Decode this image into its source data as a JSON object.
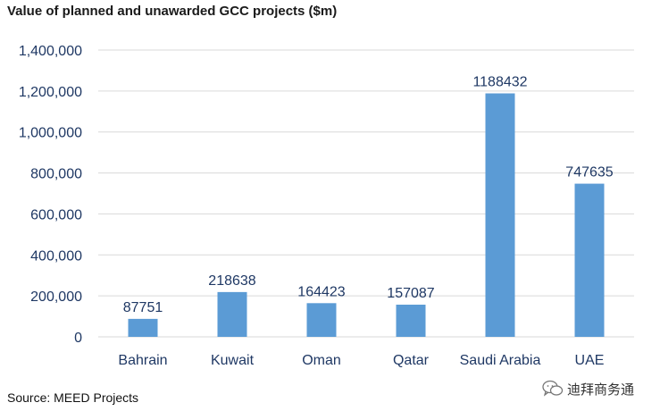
{
  "chart_data": {
    "type": "bar",
    "title": "Value of planned and unawarded GCC projects ($m)",
    "categories": [
      "Bahrain",
      "Kuwait",
      "Oman",
      "Qatar",
      "Saudi Arabia",
      "UAE"
    ],
    "values": [
      87751,
      218638,
      164423,
      157087,
      1188432,
      747635
    ],
    "data_labels": [
      "87751",
      "218638",
      "164423",
      "157087",
      "1188432",
      "747635"
    ],
    "xlabel": "",
    "ylabel": "",
    "ylim": [
      0,
      1400000
    ],
    "yticks": [
      0,
      200000,
      400000,
      600000,
      800000,
      1000000,
      1200000,
      1400000
    ],
    "ytick_labels": [
      "0",
      "200,000",
      "400,000",
      "600,000",
      "800,000",
      "1,000,000",
      "1,200,000",
      "1,400,000"
    ],
    "grid": true,
    "bar_color": "#5b9bd5",
    "grid_color": "#d9d9d9",
    "text_color": "#1f3864"
  },
  "source": "Source: MEED Projects",
  "watermark": "迪拜商务通",
  "watermark_icon": "wechat-icon"
}
